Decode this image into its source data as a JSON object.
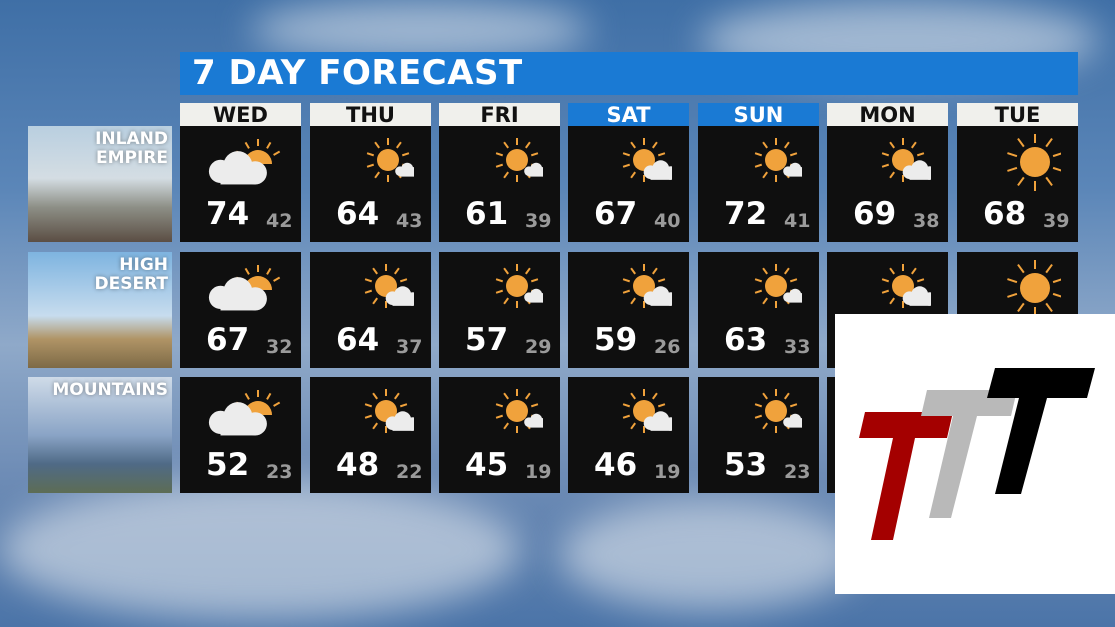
{
  "title": "7 DAY FORECAST",
  "days": [
    {
      "label": "WED",
      "weekend": false
    },
    {
      "label": "THU",
      "weekend": false
    },
    {
      "label": "FRI",
      "weekend": false
    },
    {
      "label": "SAT",
      "weekend": true
    },
    {
      "label": "SUN",
      "weekend": true
    },
    {
      "label": "MON",
      "weekend": false
    },
    {
      "label": "TUE",
      "weekend": false
    }
  ],
  "colors": {
    "accent": "#1a7ad4",
    "sun": "#f0a23c",
    "cell": "#0f0f0f",
    "low": "#9a9a9a"
  },
  "regions": [
    {
      "line1": "INLAND",
      "line2": "EMPIRE",
      "cells": [
        {
          "icon": "mostly-cloudy-icon",
          "hi": "74",
          "lo": "42"
        },
        {
          "icon": "sunny-small-cloud-icon",
          "hi": "64",
          "lo": "43"
        },
        {
          "icon": "sunny-small-cloud-icon",
          "hi": "61",
          "lo": "39"
        },
        {
          "icon": "partly-sunny-icon",
          "hi": "67",
          "lo": "40"
        },
        {
          "icon": "sunny-small-cloud-icon",
          "hi": "72",
          "lo": "41"
        },
        {
          "icon": "partly-sunny-icon",
          "hi": "69",
          "lo": "38"
        },
        {
          "icon": "sunny-icon",
          "hi": "68",
          "lo": "39"
        }
      ]
    },
    {
      "line1": "HIGH",
      "line2": "DESERT",
      "cells": [
        {
          "icon": "mostly-cloudy-icon",
          "hi": "67",
          "lo": "32"
        },
        {
          "icon": "partly-sunny-icon",
          "hi": "64",
          "lo": "37"
        },
        {
          "icon": "sunny-small-cloud-icon",
          "hi": "57",
          "lo": "29"
        },
        {
          "icon": "partly-sunny-icon",
          "hi": "59",
          "lo": "26"
        },
        {
          "icon": "sunny-small-cloud-icon",
          "hi": "63",
          "lo": "33"
        },
        {
          "icon": "partly-sunny-icon"
        },
        {
          "icon": "sunny-icon"
        }
      ]
    },
    {
      "line1": "",
      "line2": "MOUNTAINS",
      "cells": [
        {
          "icon": "mostly-cloudy-icon",
          "hi": "52",
          "lo": "23"
        },
        {
          "icon": "partly-sunny-icon",
          "hi": "48",
          "lo": "22"
        },
        {
          "icon": "sunny-small-cloud-icon",
          "hi": "45",
          "lo": "19"
        },
        {
          "icon": "partly-sunny-icon",
          "hi": "46",
          "lo": "19"
        },
        {
          "icon": "sunny-small-cloud-icon",
          "hi": "53",
          "lo": "23"
        },
        {
          "icon": "partly-sunny-icon"
        },
        {
          "icon": "sunny-icon"
        }
      ]
    }
  ]
}
